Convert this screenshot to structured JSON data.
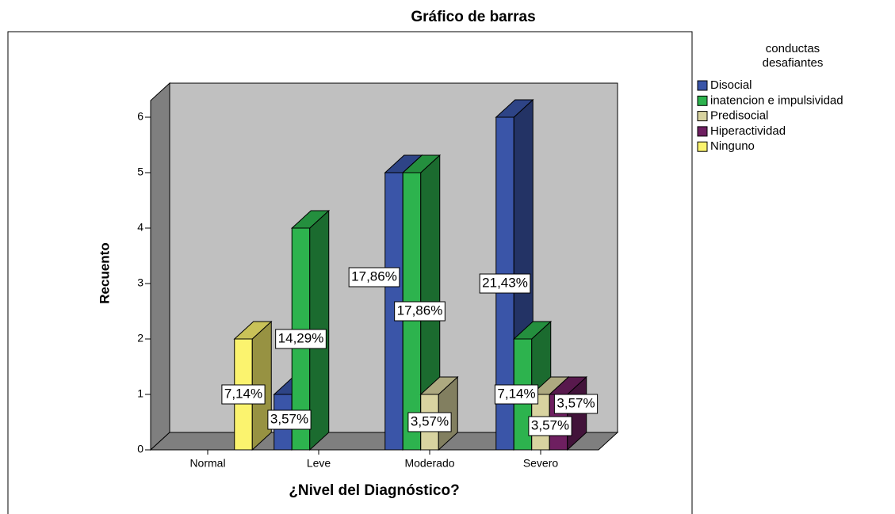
{
  "chart_data": {
    "type": "bar3d",
    "title": "Gráfico de barras",
    "x_label": "¿Nivel del Diagnóstico?",
    "y_label": "Recuento",
    "legend_title": [
      "conductas",
      "desafiantes"
    ],
    "categories": [
      "Normal",
      "Leve",
      "Moderado",
      "Severo"
    ],
    "series": [
      {
        "name": "Disocial",
        "color": "#3a55a8",
        "values": [
          null,
          1,
          5,
          6
        ],
        "labels": [
          null,
          "3,57%",
          "17,86%",
          "21,43%"
        ]
      },
      {
        "name": "inatencion e impulsividad",
        "color": "#2db34e",
        "values": [
          null,
          4,
          5,
          2
        ],
        "labels": [
          null,
          "14,29%",
          "17,86%",
          "7,14%"
        ]
      },
      {
        "name": "Predisocial",
        "color": "#d8d3a0",
        "values": [
          null,
          null,
          1,
          1
        ],
        "labels": [
          null,
          null,
          "3,57%",
          "3,57%"
        ]
      },
      {
        "name": "Hiperactividad",
        "color": "#6e1f60",
        "values": [
          null,
          null,
          null,
          1
        ],
        "labels": [
          null,
          null,
          null,
          "3,57%"
        ]
      },
      {
        "name": "Ninguno",
        "color": "#fbf36e",
        "values": [
          2,
          null,
          null,
          null
        ],
        "labels": [
          "7,14%",
          null,
          null,
          null
        ]
      }
    ],
    "ylim": [
      0,
      6.3
    ],
    "yticks": [
      0,
      1,
      2,
      3,
      4,
      5,
      6
    ],
    "legend": "right"
  }
}
